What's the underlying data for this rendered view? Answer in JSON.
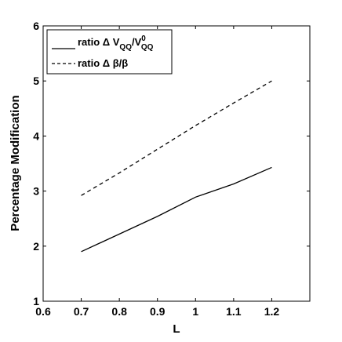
{
  "chart_data": {
    "type": "line",
    "xlabel": "L",
    "ylabel": "Percentage Modification",
    "xlim": [
      0.6,
      1.3
    ],
    "ylim": [
      1,
      6
    ],
    "xticks": [
      "0.6",
      "0.7",
      "0.8",
      "0.9",
      "1",
      "1.1",
      "1.2"
    ],
    "yticks": [
      "1",
      "2",
      "3",
      "4",
      "5",
      "6"
    ],
    "grid": false,
    "legend_position": "top-left",
    "series": [
      {
        "name_prefix": "ratio Δ V",
        "name_sub": "QQ",
        "name_mid": "/V",
        "name_sup": "0",
        "name_sub2": "QQ",
        "style": "solid",
        "color": "#000000",
        "x": [
          0.7,
          0.8,
          0.9,
          1.0,
          1.1,
          1.2
        ],
        "y": [
          1.9,
          2.22,
          2.54,
          2.89,
          3.13,
          3.43
        ]
      },
      {
        "name": "ratio Δ β/β",
        "style": "dashed",
        "color": "#000000",
        "x": [
          0.7,
          0.8,
          0.9,
          1.0,
          1.1,
          1.2
        ],
        "y": [
          2.92,
          3.33,
          3.76,
          4.19,
          4.6,
          5.0
        ]
      }
    ]
  }
}
